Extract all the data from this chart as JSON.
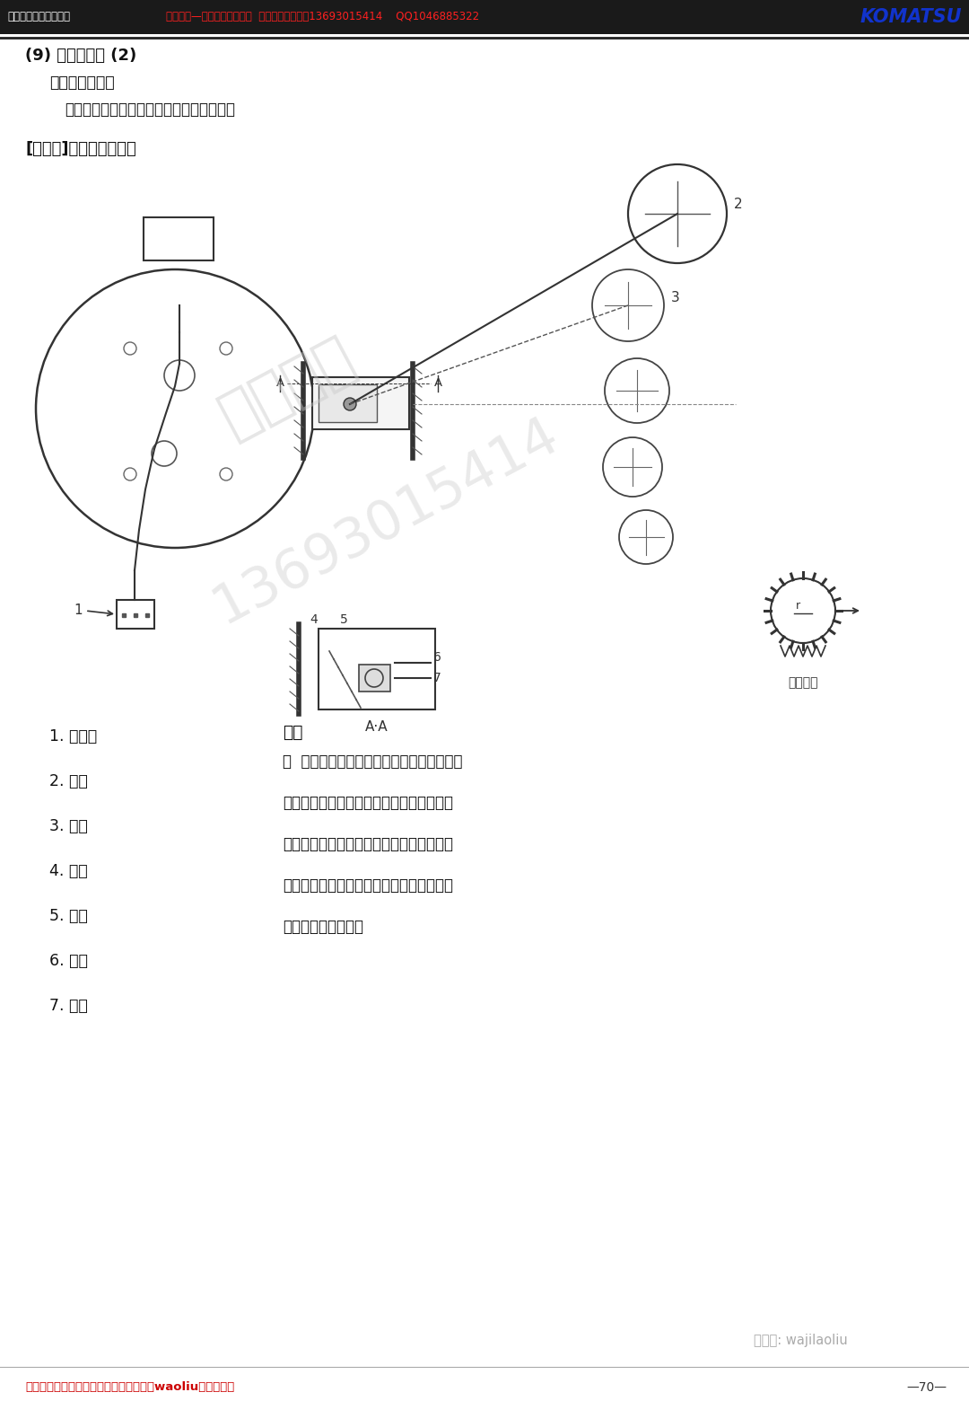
{
  "bg_color": "#ffffff",
  "header_left": "电控系统的构成及机能",
  "header_center": "挖机老机—提供挖机维修资料  电话（微信同号）13693015414    QQ1046885322",
  "komatsu_text": "KOMATSU",
  "title1": "(9) 油位传感器 (2)",
  "title2": "也称燃料传感器",
  "desc": "为了了解剩余的油量而检测油位的传感器。",
  "section_title": "[使用例]燃油油位指示器",
  "parts_list": [
    "1. 接插件",
    "2. 浮子",
    "3. 斗杆",
    "4. 壳体",
    "5. 弹簧",
    "6. 接点",
    "7. 膜片"
  ],
  "function_title": "机能",
  "function_lines": [
    "＊  燃油油位传感器按装在油箱侧面，根据油",
    "的剩余量浮子升降。浮子的动作通过臂使可",
    "变电阻作动，把信号送至副仪表，显示剩余",
    "油量。另外，保养仪表的显示到达规定位置",
    "后，使警告灯闪亮。"
  ],
  "circuit_label": "回路构成",
  "aa_label": "A·A",
  "watermark_text1": "搜机老机",
  "watermark_text2": "13693015414",
  "footer_text": "看免费维修资料小松东风沃尔沃训练中心waoliu微信公众号",
  "page_num": "—70—",
  "wechat_label": "微信号: wajilaoliu",
  "label2": "2",
  "label3": "3",
  "label4": "4",
  "label5": "5",
  "label6": "6",
  "label7": "7",
  "label1": "1"
}
